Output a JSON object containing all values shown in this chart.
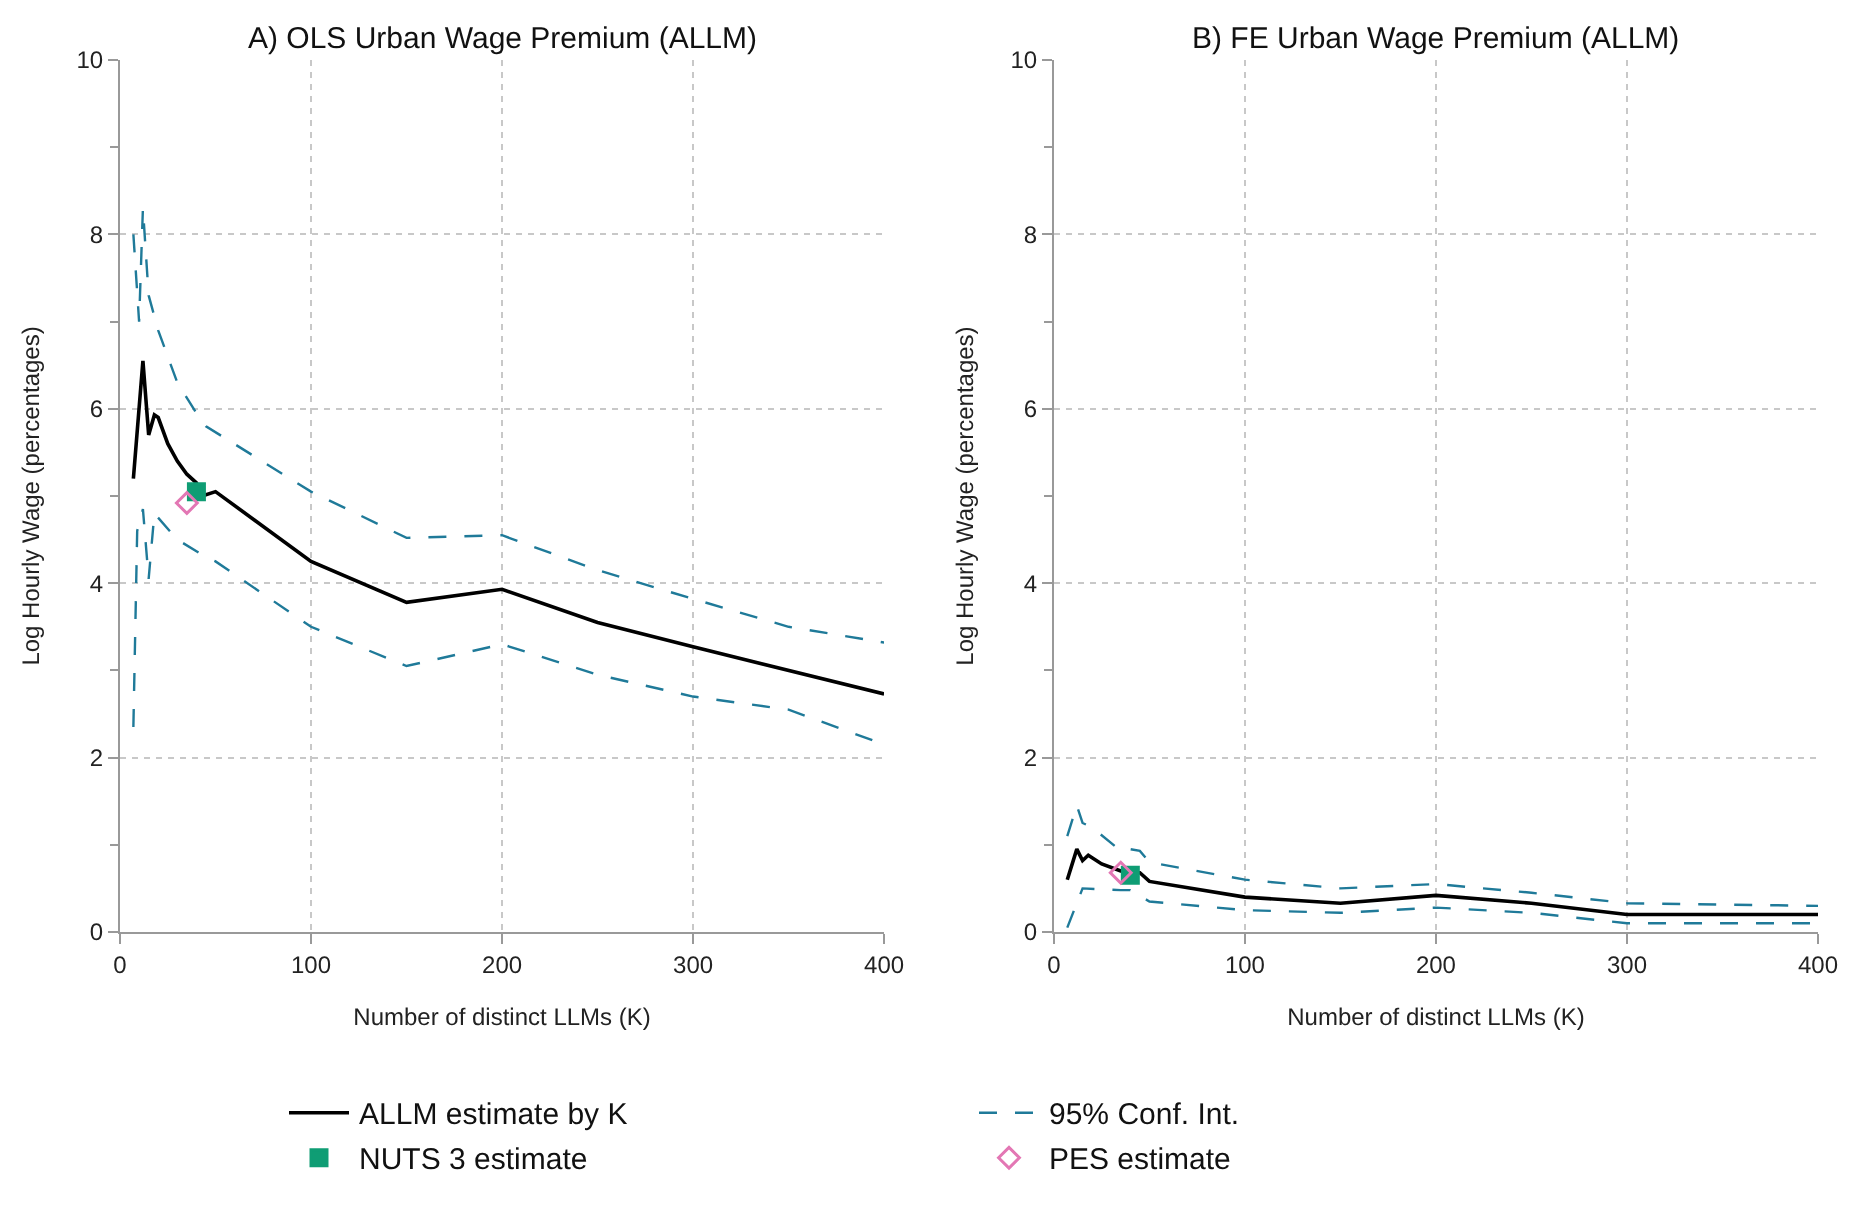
{
  "chart_data": [
    {
      "type": "line",
      "title": "A) OLS Urban Wage Premium (ALLM)",
      "xlabel": "Number of distinct LLMs (K)",
      "ylabel": "Log Hourly Wage (percentages)",
      "xlim": [
        0,
        400
      ],
      "xticks": [
        0,
        100,
        200,
        300,
        400
      ],
      "ylim": [
        0,
        10
      ],
      "yticks": [
        0,
        {
          "value": 1,
          "label": null
        },
        2,
        {
          "value": 3,
          "label": null
        },
        4,
        {
          "value": 5,
          "label": null
        },
        6,
        {
          "value": 7,
          "label": null
        },
        8,
        {
          "value": 9,
          "label": null
        },
        10
      ],
      "grid": true,
      "legend": "bottom",
      "series": [
        {
          "name": "ALLM estimate by K",
          "color": "#000000",
          "line_style": "solid",
          "x": [
            7,
            12,
            15,
            18,
            20,
            25,
            30,
            35,
            40,
            43,
            50,
            100,
            150,
            200,
            250,
            300,
            400
          ],
          "values": [
            5.2,
            6.55,
            5.7,
            5.93,
            5.9,
            5.6,
            5.4,
            5.25,
            5.15,
            5.0,
            5.05,
            4.25,
            3.78,
            3.93,
            3.55,
            3.27,
            2.73
          ]
        },
        {
          "name": "95% Conf. Int.",
          "color": "#1f7a99",
          "line_style": "dashed",
          "x": [
            7,
            10,
            12,
            15,
            20,
            30,
            40,
            45,
            100,
            150,
            200,
            250,
            300,
            350,
            400
          ],
          "values": [
            8.0,
            7.0,
            8.3,
            7.3,
            6.9,
            6.3,
            5.95,
            5.8,
            5.05,
            4.52,
            4.55,
            4.15,
            3.82,
            3.5,
            3.32
          ]
        },
        {
          "color": "#1f7a99",
          "line_style": "dashed",
          "x": [
            7,
            9,
            12,
            15,
            18,
            30,
            45,
            50,
            100,
            150,
            200,
            250,
            300,
            350,
            400
          ],
          "values": [
            2.35,
            4.6,
            4.85,
            4.05,
            4.8,
            4.5,
            4.3,
            4.25,
            3.5,
            3.05,
            3.3,
            2.95,
            2.7,
            2.55,
            2.15
          ]
        },
        {
          "name": "NUTS 3 estimate",
          "type": "scatter",
          "marker": "square",
          "color": "#0f9d74",
          "x": [
            40
          ],
          "values": [
            5.05
          ]
        },
        {
          "name": "PES estimate",
          "type": "scatter",
          "marker": "diamond",
          "color": "#e377b4",
          "x": [
            35
          ],
          "values": [
            4.92
          ]
        }
      ]
    },
    {
      "type": "line",
      "title": "B) FE Urban Wage Premium (ALLM)",
      "xlabel": "Number of distinct LLMs (K)",
      "ylabel": "Log Hourly Wage (percentages)",
      "xlim": [
        0,
        400
      ],
      "xticks": [
        0,
        100,
        200,
        300,
        400
      ],
      "ylim": [
        0,
        10
      ],
      "yticks": [
        0,
        {
          "value": 1,
          "label": null
        },
        2,
        {
          "value": 3,
          "label": null
        },
        4,
        {
          "value": 5,
          "label": null
        },
        6,
        {
          "value": 7,
          "label": null
        },
        8,
        {
          "value": 9,
          "label": null
        },
        10
      ],
      "grid": true,
      "series": [
        {
          "name": "ALLM estimate by K",
          "color": "#000000",
          "line_style": "solid",
          "x": [
            7,
            12,
            15,
            18,
            25,
            35,
            40,
            45,
            50,
            100,
            150,
            200,
            250,
            300,
            400
          ],
          "values": [
            0.6,
            0.95,
            0.82,
            0.88,
            0.78,
            0.7,
            0.68,
            0.68,
            0.58,
            0.4,
            0.33,
            0.42,
            0.33,
            0.2,
            0.2
          ]
        },
        {
          "name": "95% Conf. Int.",
          "color": "#1f7a99",
          "line_style": "dashed",
          "x": [
            7,
            12,
            15,
            20,
            35,
            40,
            45,
            50,
            100,
            150,
            200,
            250,
            300,
            400
          ],
          "values": [
            1.1,
            1.45,
            1.25,
            1.2,
            0.93,
            0.95,
            0.93,
            0.8,
            0.6,
            0.5,
            0.55,
            0.45,
            0.33,
            0.3
          ]
        },
        {
          "color": "#1f7a99",
          "line_style": "dashed",
          "x": [
            7,
            15,
            35,
            40,
            50,
            100,
            150,
            200,
            250,
            300,
            400
          ],
          "values": [
            0.05,
            0.5,
            0.48,
            0.48,
            0.35,
            0.25,
            0.22,
            0.28,
            0.22,
            0.1,
            0.1
          ]
        },
        {
          "name": "NUTS 3 estimate",
          "type": "scatter",
          "marker": "square",
          "color": "#0f9d74",
          "x": [
            40
          ],
          "values": [
            0.65
          ]
        },
        {
          "name": "PES estimate",
          "type": "scatter",
          "marker": "diamond",
          "color": "#e377b4",
          "x": [
            35
          ],
          "values": [
            0.68
          ]
        }
      ]
    }
  ]
}
